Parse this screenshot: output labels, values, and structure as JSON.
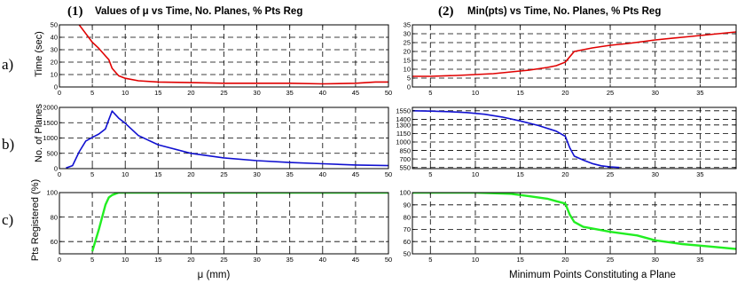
{
  "figure": {
    "titles": [
      {
        "num": "(1)",
        "text": "Values of μ vs Time, No. Planes, % Pts Reg"
      },
      {
        "num": "(2)",
        "text": "Min(pts) vs Time, No. Planes, % Pts Reg"
      }
    ],
    "row_labels": [
      "a)",
      "b)",
      "c)"
    ],
    "ylabels": [
      "Time (sec)",
      "No. of Planes",
      "Pts Registered (%)"
    ],
    "xlabels": [
      "μ (mm)",
      "Minimum Points Constituting a Plane"
    ],
    "colors": {
      "time": "#e00000",
      "planes": "#1010d0",
      "registered": "#22ee22",
      "grid": "#000000"
    }
  },
  "chart_data": [
    {
      "id": "1a",
      "type": "line",
      "color": "#e00000",
      "xlim": [
        0,
        50
      ],
      "ylim": [
        0,
        50
      ],
      "xticks": [
        0,
        5,
        10,
        15,
        20,
        25,
        30,
        35,
        40,
        45,
        50
      ],
      "yticks": [
        0,
        10,
        20,
        30,
        40,
        50
      ],
      "grid": true,
      "series": [
        {
          "x": [
            3,
            4,
            5,
            6,
            7,
            7.5,
            8,
            9,
            10,
            12,
            15,
            20,
            25,
            30,
            35,
            40,
            45,
            48,
            50
          ],
          "y": [
            50,
            43,
            36,
            31,
            25,
            22,
            15,
            9,
            7,
            5,
            4,
            3.5,
            3,
            3,
            3,
            2.5,
            3,
            4,
            4
          ]
        }
      ]
    },
    {
      "id": "1b",
      "type": "line",
      "color": "#1010d0",
      "xlim": [
        0,
        50
      ],
      "ylim": [
        0,
        2000
      ],
      "xticks": [
        0,
        5,
        10,
        15,
        20,
        25,
        30,
        35,
        40,
        45,
        50
      ],
      "yticks": [
        0,
        500,
        1000,
        1500,
        2000
      ],
      "grid": true,
      "series": [
        {
          "x": [
            1,
            2,
            3,
            4,
            5,
            6,
            7,
            7.5,
            8,
            9,
            10,
            12,
            15,
            20,
            25,
            30,
            35,
            40,
            45,
            50
          ],
          "y": [
            20,
            100,
            550,
            900,
            1020,
            1130,
            1300,
            1600,
            1880,
            1650,
            1480,
            1080,
            780,
            500,
            350,
            260,
            200,
            160,
            120,
            100
          ]
        }
      ]
    },
    {
      "id": "1c",
      "type": "line",
      "color": "#22ee22",
      "xlim": [
        0,
        50
      ],
      "ylim": [
        50,
        100
      ],
      "xticks": [
        0,
        5,
        10,
        15,
        20,
        25,
        30,
        35,
        40,
        45,
        50
      ],
      "yticks": [
        60,
        80,
        100
      ],
      "grid": true,
      "series": [
        {
          "x": [
            5,
            6,
            7,
            7.5,
            8,
            9,
            10,
            20,
            30,
            40,
            50
          ],
          "y": [
            52,
            70,
            90,
            96,
            98,
            100,
            100,
            100,
            100,
            100,
            100
          ]
        }
      ]
    },
    {
      "id": "2a",
      "type": "line",
      "color": "#e00000",
      "xlim": [
        3,
        39
      ],
      "ylim": [
        0,
        35
      ],
      "xticks": [
        5,
        10,
        15,
        20,
        25,
        30,
        35
      ],
      "yticks": [
        0,
        5,
        10,
        15,
        20,
        25,
        30,
        35
      ],
      "grid": true,
      "series": [
        {
          "x": [
            3,
            5,
            8,
            10,
            12,
            14,
            16,
            18,
            19,
            20,
            20.5,
            21,
            23,
            25,
            27,
            30,
            33,
            36,
            39
          ],
          "y": [
            6,
            6,
            6.5,
            7,
            7.5,
            8.5,
            9.5,
            11,
            12,
            14,
            17,
            20,
            22,
            23.5,
            24.5,
            26.5,
            28,
            29.5,
            31
          ]
        }
      ]
    },
    {
      "id": "2b",
      "type": "line",
      "color": "#1010d0",
      "xlim": [
        3,
        39
      ],
      "ylim": [
        530,
        1610
      ],
      "xticks": [
        5,
        10,
        15,
        20,
        25,
        30,
        35
      ],
      "yticks": [
        550,
        700,
        850,
        1000,
        1150,
        1300,
        1400,
        1550
      ],
      "grid": true,
      "series": [
        {
          "x": [
            3,
            5,
            7,
            9,
            11,
            13,
            15,
            17,
            19,
            20,
            20.5,
            21,
            22,
            23,
            24,
            25,
            26
          ],
          "y": [
            1550,
            1545,
            1535,
            1520,
            1490,
            1440,
            1370,
            1290,
            1190,
            1100,
            900,
            750,
            680,
            620,
            580,
            560,
            550
          ]
        }
      ]
    },
    {
      "id": "2c",
      "type": "line",
      "color": "#22ee22",
      "xlim": [
        3,
        39
      ],
      "ylim": [
        50,
        100
      ],
      "xticks": [
        5,
        10,
        15,
        20,
        25,
        30,
        35
      ],
      "yticks": [
        50,
        60,
        70,
        80,
        90,
        100
      ],
      "grid": true,
      "series": [
        {
          "x": [
            3,
            5,
            10,
            14,
            16,
            18,
            19,
            20,
            20.5,
            21,
            22,
            25,
            28,
            30,
            33,
            36,
            39
          ],
          "y": [
            100,
            100,
            100,
            99,
            97,
            95,
            93,
            91,
            82,
            76,
            72,
            68,
            65,
            61,
            58,
            56,
            54
          ]
        }
      ]
    }
  ]
}
